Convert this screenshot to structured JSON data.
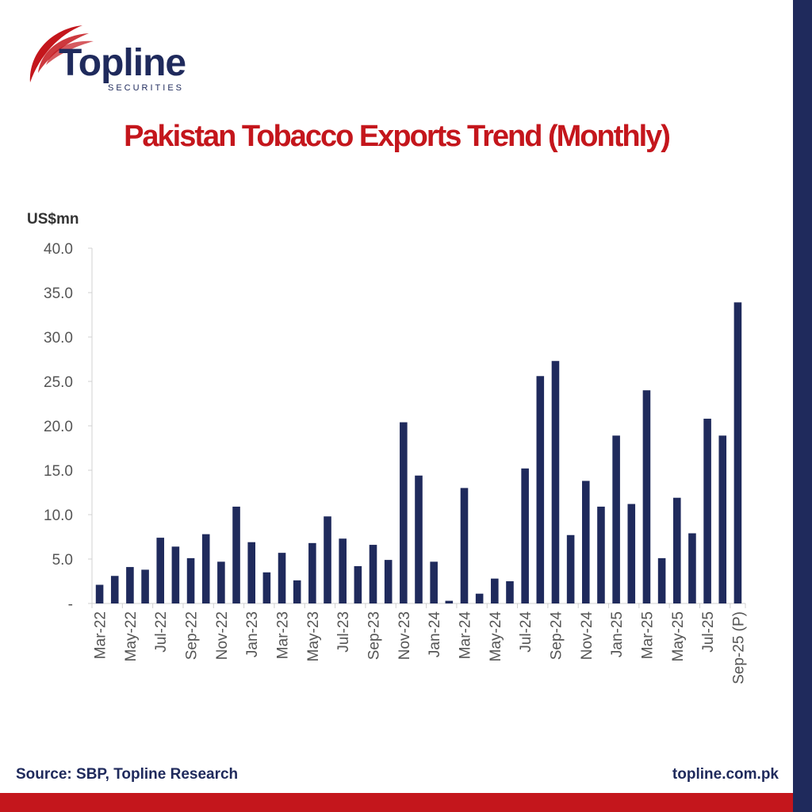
{
  "brand": {
    "name": "Topline",
    "subtitle": "SECURITIES",
    "navy": "#1f2a5c",
    "red": "#c4161c"
  },
  "chart_data": {
    "type": "bar",
    "title": "Pakistan Tobacco Exports Trend (Monthly)",
    "ylabel": "US$mn",
    "xlabel": "",
    "ylim": [
      0,
      40
    ],
    "yticks": [
      "-",
      "5.0",
      "10.0",
      "15.0",
      "20.0",
      "25.0",
      "30.0",
      "35.0",
      "40.0"
    ],
    "grid": false,
    "bar_color": "#1f2a5c",
    "categories": [
      "Mar-22",
      "Apr-22",
      "May-22",
      "Jun-22",
      "Jul-22",
      "Aug-22",
      "Sep-22",
      "Oct-22",
      "Nov-22",
      "Dec-22",
      "Jan-23",
      "Feb-23",
      "Mar-23",
      "Apr-23",
      "May-23",
      "Jun-23",
      "Jul-23",
      "Aug-23",
      "Sep-23",
      "Oct-23",
      "Nov-23",
      "Dec-23",
      "Jan-24",
      "Feb-24",
      "Mar-24",
      "Apr-24",
      "May-24",
      "Jun-24",
      "Jul-24",
      "Aug-24",
      "Sep-24",
      "Oct-24",
      "Nov-24",
      "Dec-24",
      "Jan-25",
      "Feb-25",
      "Mar-25",
      "Apr-25",
      "May-25",
      "Jun-25",
      "Jul-25",
      "Aug-25",
      "Sep-25 (P)"
    ],
    "tick_labels_shown": [
      "Mar-22",
      "May-22",
      "Jul-22",
      "Sep-22",
      "Nov-22",
      "Jan-23",
      "Mar-23",
      "May-23",
      "Jul-23",
      "Sep-23",
      "Nov-23",
      "Jan-24",
      "Mar-24",
      "May-24",
      "Jul-24",
      "Sep-24",
      "Nov-24",
      "Jan-25",
      "Mar-25",
      "May-25",
      "Jul-25",
      "Sep-25 (P)"
    ],
    "values": [
      2.1,
      3.1,
      4.1,
      3.8,
      7.4,
      6.4,
      5.1,
      7.8,
      4.7,
      10.9,
      6.9,
      3.5,
      5.7,
      2.6,
      6.8,
      9.8,
      7.3,
      4.2,
      6.6,
      4.9,
      20.4,
      14.4,
      4.7,
      0.3,
      13.0,
      1.1,
      2.8,
      2.5,
      15.2,
      25.6,
      27.3,
      7.7,
      13.8,
      10.9,
      18.9,
      11.2,
      24.0,
      5.1,
      11.9,
      7.9,
      20.8,
      18.9,
      33.9
    ]
  },
  "footer": {
    "source": "Source: SBP, Topline Research",
    "website": "topline.com.pk"
  }
}
